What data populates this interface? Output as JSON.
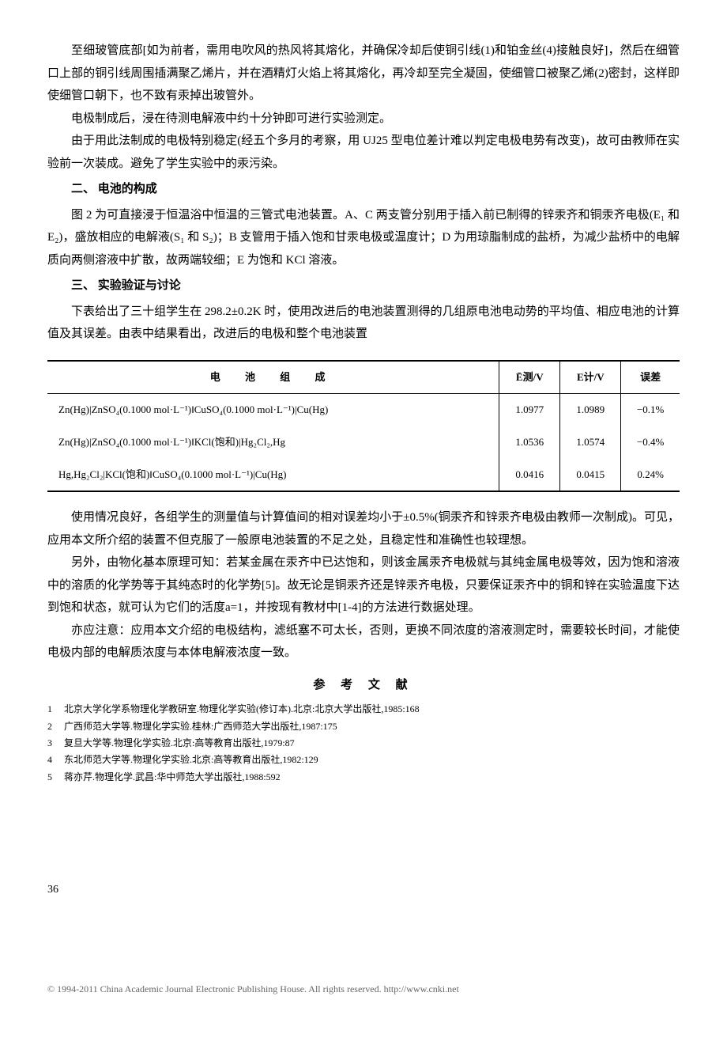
{
  "paragraphs": {
    "p1": "至细玻管底部[如为前者，需用电吹风的热风将其熔化，并确保冷却后使铜引线(1)和铂金丝(4)接触良好]，然后在细管口上部的铜引线周围插满聚乙烯片，并在酒精灯火焰上将其熔化，再冷却至完全凝固，使细管口被聚乙烯(2)密封，这样即使细管口朝下，也不致有汞掉出玻管外。",
    "p2": "电极制成后，浸在待测电解液中约十分钟即可进行实验测定。",
    "p3": "由于用此法制成的电极特别稳定(经五个多月的考察，用 UJ25 型电位差计难以判定电极电势有改变)，故可由教师在实验前一次装成。避免了学生实验中的汞污染。",
    "s2_title": "二、 电池的构成",
    "p4": "图 2 为可直接浸于恒温浴中恒温的三管式电池装置。A、C 两支管分别用于插入前已制得的锌汞齐和铜汞齐电极(E₁ 和 E₂)，盛放相应的电解液(S₁ 和 S₂)；B 支管用于插入饱和甘汞电极或温度计；D 为用琼脂制成的盐桥，为减少盐桥中的电解质向两侧溶液中扩散，故两端较细；E 为饱和 KCl 溶液。",
    "s3_title": "三、 实验验证与讨论",
    "p5": "下表给出了三十组学生在 298.2±0.2K 时，使用改进后的电池装置测得的几组原电池电动势的平均值、相应电池的计算值及其误差。由表中结果看出，改进后的电极和整个电池装置",
    "p6": "使用情况良好，各组学生的测量值与计算值间的相对误差均小于±0.5%(铜汞齐和锌汞齐电极由教师一次制成)。可见，应用本文所介绍的装置不但克服了一般原电池装置的不足之处，且稳定性和准确性也较理想。",
    "p7": "另外，由物化基本原理可知：若某金属在汞齐中已达饱和，则该金属汞齐电极就与其纯金属电极等效，因为饱和溶液中的溶质的化学势等于其纯态时的化学势[5]。故无论是铜汞齐还是锌汞齐电极，只要保证汞齐中的铜和锌在实验温度下达到饱和状态，就可认为它们的活度a=1，并按现有教材中[1-4]的方法进行数据处理。",
    "p8": "亦应注意：应用本文介绍的电极结构，滤纸塞不可太长，否则，更换不同浓度的溶液测定时，需要较长时间，才能使电极内部的电解质浓度与本体电解液浓度一致。"
  },
  "table": {
    "headers": {
      "col1": "电 池 组 成",
      "col2": "Ē测/V",
      "col3": "E计/V",
      "col4": "误差"
    },
    "rows": [
      {
        "cell1": "Zn(Hg)|ZnSO₄(0.1000 mol·L⁻¹)‖CuSO₄(0.1000 mol·L⁻¹)|Cu(Hg)",
        "cell2": "1.0977",
        "cell3": "1.0989",
        "cell4": "−0.1%"
      },
      {
        "cell1": "Zn(Hg)|ZnSO₄(0.1000 mol·L⁻¹)‖KCl(饱和)|Hg₂Cl₂,Hg",
        "cell2": "1.0536",
        "cell3": "1.0574",
        "cell4": "−0.4%"
      },
      {
        "cell1": "Hg,Hg₂Cl₂|KCl(饱和)‖CuSO₄(0.1000 mol·L⁻¹)|Cu(Hg)",
        "cell2": "0.0416",
        "cell3": "0.0415",
        "cell4": "0.24%"
      }
    ]
  },
  "references": {
    "title": "参 考 文 献",
    "items": [
      {
        "num": "1",
        "text": "北京大学化学系物理化学教研室.物理化学实验(修订本).北京:北京大学出版社,1985:168"
      },
      {
        "num": "2",
        "text": "广西师范大学等.物理化学实验.桂林:广西师范大学出版社,1987:175"
      },
      {
        "num": "3",
        "text": "复旦大学等.物理化学实验.北京:高等教育出版社,1979:87"
      },
      {
        "num": "4",
        "text": "东北师范大学等.物理化学实验.北京:高等教育出版社,1982:129"
      },
      {
        "num": "5",
        "text": "蒋亦芹.物理化学.武昌:华中师范大学出版社,1988:592"
      }
    ]
  },
  "page_num": "36",
  "footer": "© 1994-2011 China Academic Journal Electronic Publishing House. All rights reserved.    http://www.cnki.net"
}
